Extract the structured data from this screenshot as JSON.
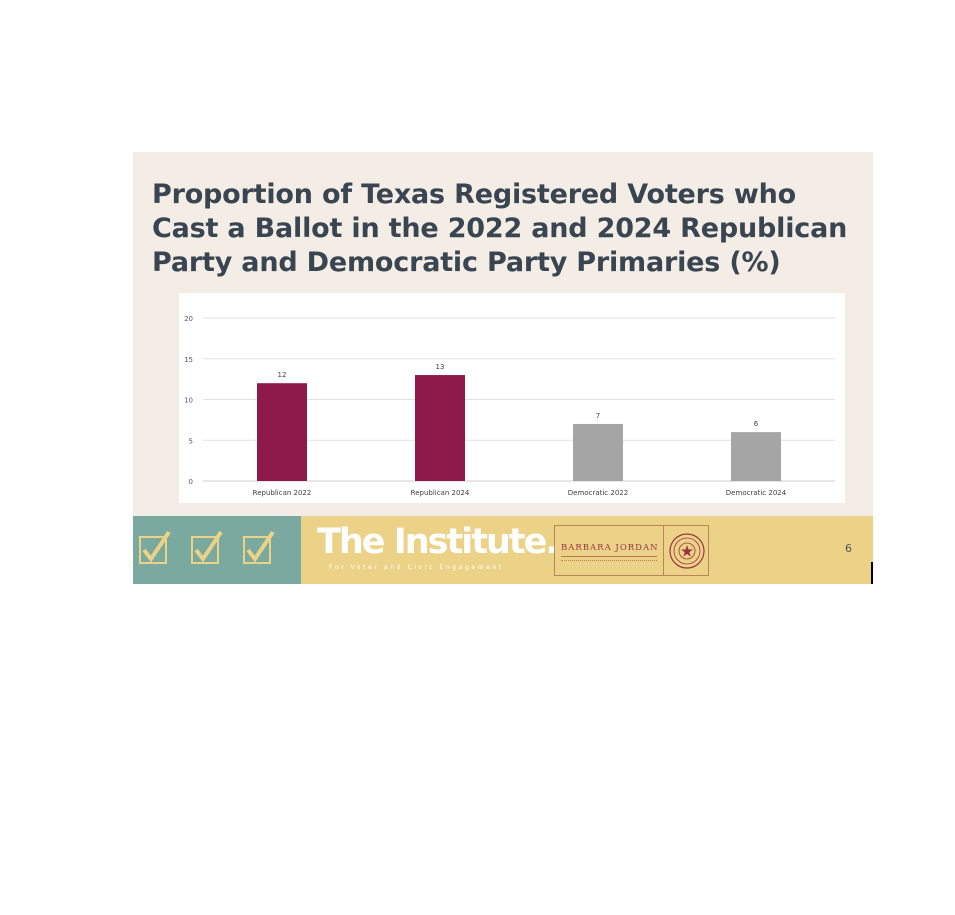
{
  "slide": {
    "title": "Proportion of Texas Registered Voters who Cast a Ballot in the 2022 and 2024 Republican Party and Democratic Party Primaries (%)",
    "page_number": "6"
  },
  "footer": {
    "logo_text": "The Institute.",
    "logo_subtitle": "For Voter and Civic Engagement",
    "partner_name": "BARBARA JORDAN",
    "colors": {
      "teal": "#79a99f",
      "gold": "#ecd287",
      "check": "#ecd287"
    },
    "icons": [
      "checkbox-icon",
      "checkbox-icon",
      "checkbox-icon",
      "seal-icon"
    ]
  },
  "chart_data": {
    "type": "bar",
    "title": "",
    "xlabel": "",
    "ylabel": "",
    "categories": [
      "Republican 2022",
      "Republican 2024",
      "Democratic 2022",
      "Democratic 2024"
    ],
    "values": [
      12,
      13,
      7,
      6
    ],
    "data_labels": [
      "12",
      "13",
      "7",
      "6"
    ],
    "colors": [
      "#8e1a4a",
      "#8e1a4a",
      "#a5a5a5",
      "#a5a5a5"
    ],
    "ylim": [
      0,
      20
    ],
    "yticks": [
      0,
      5,
      10,
      15,
      20
    ],
    "ytick_labels": [
      "0",
      "5",
      "10",
      "15",
      "20"
    ],
    "grid": true,
    "legend": "none"
  }
}
